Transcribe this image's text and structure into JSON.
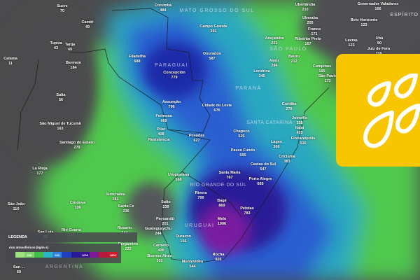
{
  "map": {
    "layer": "rios atmosféricos",
    "colors": {
      "background": "#4b4b4d",
      "badge": "#f7c600"
    },
    "regions": [
      "MATO GROSSO DO SUL",
      "PARAGUAI",
      "PARANÁ",
      "SÃO PAULO",
      "SANTA CATARINA",
      "RIO GRANDE DO SUL",
      "URUGUAI",
      "ARGENTINA",
      "ESPÍRITO"
    ],
    "cities": [
      {
        "name": "Sucre",
        "value": "70"
      },
      {
        "name": "Camiri",
        "value": "49"
      },
      {
        "name": "Tupiza",
        "value": "43"
      },
      {
        "name": "Tarija",
        "value": "49"
      },
      {
        "name": "Bermejo",
        "value": "184"
      },
      {
        "name": "Calama",
        "value": "11"
      },
      {
        "name": "Salta",
        "value": "56"
      },
      {
        "name": "São Miguel de Tucumã",
        "value": "163"
      },
      {
        "name": "Santiago do Estero",
        "value": "279"
      },
      {
        "name": "La Rioja",
        "value": "177"
      },
      {
        "name": "São João",
        "value": "110"
      },
      {
        "name": "Córdova",
        "value": "106"
      },
      {
        "name": "Corumbá",
        "value": "484"
      },
      {
        "name": "Campo Grande",
        "value": "391"
      },
      {
        "name": "Filadelfia",
        "value": "688"
      },
      {
        "name": "Concepción",
        "value": "779"
      },
      {
        "name": "Dourados",
        "value": "587"
      },
      {
        "name": "Assunção",
        "value": "796"
      },
      {
        "name": "Cidade do Leste",
        "value": "676"
      },
      {
        "name": "Formosa",
        "value": "469"
      },
      {
        "name": "Pilar",
        "value": "408"
      },
      {
        "name": "Resistencia",
        "value": ""
      },
      {
        "name": "Posadas",
        "value": "627"
      },
      {
        "name": "Chapecó",
        "value": "525"
      },
      {
        "name": "Londrina",
        "value": "345"
      },
      {
        "name": "Assis",
        "value": "284"
      },
      {
        "name": "Araçatuba",
        "value": "221"
      },
      {
        "name": "Bauru",
        "value": "212"
      },
      {
        "name": "Curitiba",
        "value": "278"
      },
      {
        "name": "Joinville",
        "value": "358"
      },
      {
        "name": "Itajaí",
        "value": "429"
      },
      {
        "name": "Florianópolis",
        "value": "516"
      },
      {
        "name": "Criciúma",
        "value": "383"
      },
      {
        "name": "Lages",
        "value": "366"
      },
      {
        "name": "Passo Fundo",
        "value": "595"
      },
      {
        "name": "Caxias do Sul",
        "value": "547"
      },
      {
        "name": "Santa Maria",
        "value": "767"
      },
      {
        "name": "Porto Alegre",
        "value": "665"
      },
      {
        "name": "Uruguaiana",
        "value": "568"
      },
      {
        "name": "Rivera",
        "value": "700"
      },
      {
        "name": "Bagé",
        "value": "869"
      },
      {
        "name": "Pelotas",
        "value": "783"
      },
      {
        "name": "Melo",
        "value": "1006"
      },
      {
        "name": "Rocha",
        "value": "926"
      },
      {
        "name": "Montevidéu",
        "value": "544"
      },
      {
        "name": "Durazno",
        "value": "156"
      },
      {
        "name": "Paysandú",
        "value": "201"
      },
      {
        "name": "Salto",
        "value": "239"
      },
      {
        "name": "Gualeguaychu",
        "value": "244"
      },
      {
        "name": "Carmelo",
        "value": "406"
      },
      {
        "name": "Buenos Aires",
        "value": "301"
      },
      {
        "name": "Sunchales",
        "value": "281"
      },
      {
        "name": "Santa Fe",
        "value": "236"
      },
      {
        "name": "Rosario",
        "value": "244"
      },
      {
        "name": "Pergamino",
        "value": "222"
      },
      {
        "name": "San Luis",
        "value": "83"
      },
      {
        "name": "Rio Cuarto",
        "value": "129"
      },
      {
        "name": "Uberlândia",
        "value": "210"
      },
      {
        "name": "Uberaba",
        "value": "205"
      },
      {
        "name": "Franca",
        "value": "171"
      },
      {
        "name": "Ribeirão Preto",
        "value": "167"
      },
      {
        "name": "Belo Horizonte",
        "value": "123"
      },
      {
        "name": "Lavras",
        "value": "123"
      },
      {
        "name": "Ubá",
        "value": "90"
      },
      {
        "name": "Juiz de Fora",
        "value": "116"
      },
      {
        "name": "Governador Valadares",
        "value": "166"
      },
      {
        "name": "Campinas",
        "value": "165"
      },
      {
        "name": "São Paulo",
        "value": "173"
      },
      {
        "name": "San ...",
        "value": "69"
      }
    ]
  },
  "legend": {
    "title": "LEGENDA",
    "layer_label": "rios atmosféricos (kg/m s)",
    "scale": [
      {
        "color": "#9ee27f",
        "label": ""
      },
      {
        "color": "#7fd36a",
        "label": "300"
      },
      {
        "color": "#3fbf4a",
        "label": ""
      },
      {
        "color": "#2bb6c6",
        "label": ""
      },
      {
        "color": "#2f86e0",
        "label": "600"
      },
      {
        "color": "#1f3fc0",
        "label": ""
      },
      {
        "color": "#281a96",
        "label": ""
      },
      {
        "color": "#3a1490",
        "label": "1000"
      },
      {
        "color": "#80189a",
        "label": ""
      },
      {
        "color": "#b8183a",
        "label": ""
      },
      {
        "color": "#d01a28",
        "label": "1600"
      }
    ]
  },
  "badge": {
    "icon": "raindrops-icon"
  }
}
